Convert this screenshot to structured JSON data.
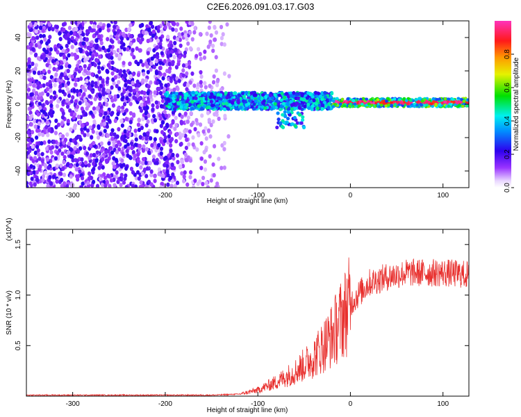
{
  "title": "C2E6.2026.091.03.17.G03",
  "colors": {
    "snr_line": "#e8302e",
    "axis": "#000000",
    "background": "#ffffff"
  },
  "chart_data": [
    {
      "type": "heatmap",
      "name_in_image": "spectrogram",
      "xlabel": "Height of straight line (km)",
      "ylabel": "Frequency (Hz)",
      "xlim": [
        -350,
        128
      ],
      "ylim": [
        -50,
        50
      ],
      "xticks": [
        -300,
        -200,
        -100,
        0,
        100
      ],
      "yticks": [
        -40,
        -20,
        0,
        20,
        40
      ],
      "colorbar": {
        "label": "Normalized spectral amplitude",
        "range": [
          0.0,
          1.0
        ],
        "ticks": [
          0.0,
          0.2,
          0.4,
          0.6,
          0.8
        ],
        "colormap": "rainbow (white-purple-blue-cyan-green-yellow-red-magenta)"
      },
      "description_regions": [
        {
          "x_range": [
            -350,
            -130
          ],
          "freq_range": [
            -50,
            50
          ],
          "amplitude": "low, noisy (0.05-0.2)"
        },
        {
          "x_range": [
            -200,
            -20
          ],
          "freq_center": 0,
          "freq_spread": 10,
          "amplitude": "0.2-0.5, with tail to -15 Hz near -60 km"
        },
        {
          "x_range": [
            -20,
            128
          ],
          "freq_center": 1,
          "freq_spread": 4,
          "amplitude": "peak ~0.9-1.0 at center line"
        }
      ]
    },
    {
      "type": "line",
      "name_in_image": "snr",
      "xlabel": "Height of straight line (km)",
      "ylabel": "SNR (10 * v/v)",
      "y_multiplier": "(x10^4)",
      "xlim": [
        -350,
        128
      ],
      "ylim": [
        0,
        1.65
      ],
      "xticks": [
        -300,
        -200,
        -100,
        0,
        100
      ],
      "yticks": [
        0.5,
        1.0,
        1.5
      ],
      "series": [
        {
          "x": [
            -350,
            -300,
            -250,
            -200,
            -150,
            -120,
            -100,
            -80,
            -60,
            -40,
            -20,
            0,
            20,
            40,
            60,
            80,
            100,
            128
          ],
          "y": [
            0.01,
            0.01,
            0.01,
            0.01,
            0.01,
            0.02,
            0.06,
            0.14,
            0.24,
            0.38,
            0.6,
            0.92,
            1.12,
            1.18,
            1.22,
            1.22,
            1.22,
            1.2
          ]
        }
      ]
    }
  ]
}
